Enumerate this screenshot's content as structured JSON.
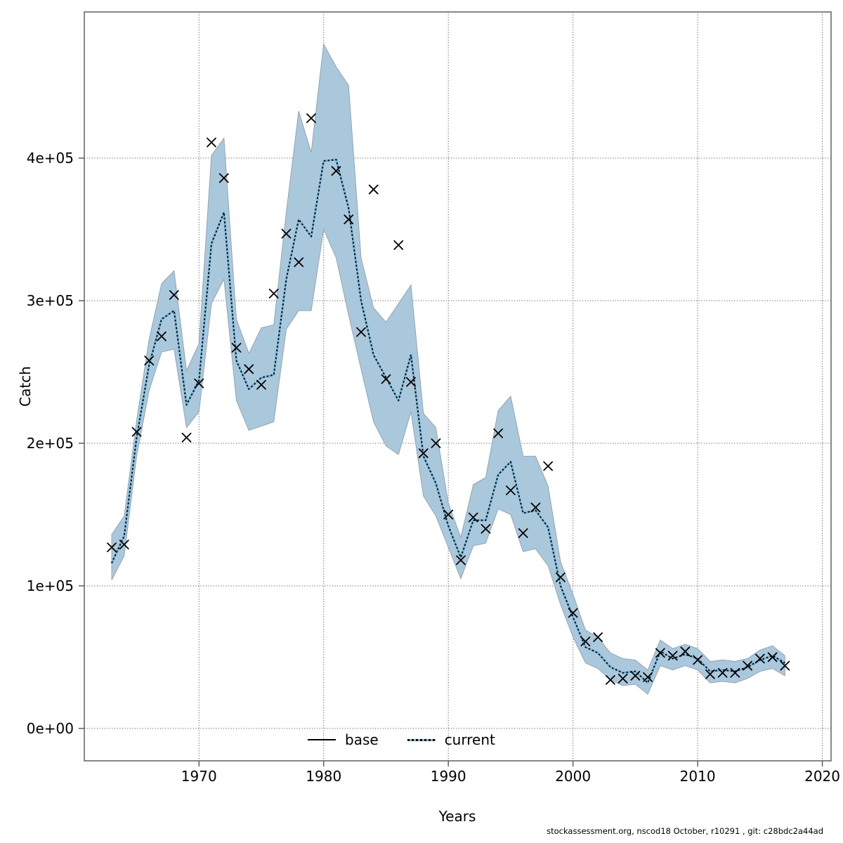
{
  "figure": {
    "xlabel": "Years",
    "ylabel": "Catch",
    "footer": "stockassessment.org, nscod18 October, r10291 , git: c28bdc2a44ad",
    "legend": [
      {
        "label": "base",
        "style": "solid-black-line"
      },
      {
        "label": "current",
        "style": "dotted-black-on-blue-line"
      }
    ]
  },
  "colors": {
    "background": "#ffffff",
    "band_fill": "#aac8db",
    "band_edge": "#8f9fae",
    "current_underline": "#6fb6dc",
    "line_black": "#000000",
    "grid": "#3c3c3c",
    "frame": "#555555",
    "text": "#000000"
  },
  "chart_data": {
    "type": "line",
    "title": "",
    "xlabel": "Years",
    "ylabel": "Catch",
    "xlim": [
      1960.8,
      2020.7
    ],
    "ylim": [
      -22700,
      502500
    ],
    "x_ticks": [
      1970,
      1980,
      1990,
      2000,
      2010,
      2020
    ],
    "y_ticks": [
      {
        "value": 0,
        "label": "0e+00"
      },
      {
        "value": 100000,
        "label": "1e+05"
      },
      {
        "value": 200000,
        "label": "2e+05"
      },
      {
        "value": 300000,
        "label": "3e+05"
      },
      {
        "value": 400000,
        "label": "4e+05"
      }
    ],
    "grid": "dotted",
    "legend_position": "bottom-center-inside",
    "years": [
      1963,
      1964,
      1965,
      1966,
      1967,
      1968,
      1969,
      1970,
      1971,
      1972,
      1973,
      1974,
      1975,
      1976,
      1977,
      1978,
      1979,
      1980,
      1981,
      1982,
      1983,
      1984,
      1985,
      1986,
      1987,
      1988,
      1989,
      1990,
      1991,
      1992,
      1993,
      1994,
      1995,
      1996,
      1997,
      1998,
      1999,
      2000,
      2001,
      2002,
      2003,
      2004,
      2005,
      2006,
      2007,
      2008,
      2009,
      2010,
      2011,
      2012,
      2013,
      2014,
      2015,
      2016,
      2017
    ],
    "series": [
      {
        "name": "base",
        "type": "line",
        "line_style": "solid",
        "color": "#000000",
        "values": [
          116000,
          135000,
          204000,
          255000,
          287000,
          293000,
          227000,
          244000,
          340000,
          362000,
          258000,
          238000,
          246000,
          248000,
          315000,
          357000,
          345000,
          398000,
          399000,
          365000,
          300000,
          262000,
          246000,
          230000,
          262000,
          191000,
          172000,
          142000,
          120000,
          146000,
          146000,
          178000,
          187000,
          151000,
          153000,
          141000,
          100000,
          78000,
          57000,
          53000,
          43000,
          39000,
          40000,
          32000,
          54000,
          49000,
          52000,
          49000,
          40000,
          41000,
          40000,
          43000,
          48000,
          51000,
          46000
        ]
      },
      {
        "name": "current",
        "type": "line",
        "line_style": "dotted",
        "color": "#000000",
        "underline_color": "#6fb6dc",
        "values": [
          116000,
          135000,
          204000,
          255000,
          287000,
          293000,
          227000,
          244000,
          340000,
          362000,
          258000,
          238000,
          246000,
          248000,
          315000,
          357000,
          345000,
          398000,
          399000,
          365000,
          300000,
          262000,
          246000,
          230000,
          262000,
          191000,
          172000,
          142000,
          120000,
          146000,
          146000,
          178000,
          187000,
          151000,
          153000,
          141000,
          100000,
          78000,
          57000,
          53000,
          43000,
          39000,
          40000,
          32000,
          54000,
          49000,
          52000,
          49000,
          40000,
          41000,
          40000,
          43000,
          48000,
          51000,
          46000
        ],
        "ci_lower": [
          104000,
          121000,
          191000,
          237000,
          264000,
          266000,
          211000,
          222000,
          298000,
          315000,
          230000,
          209000,
          212000,
          215000,
          280000,
          293000,
          293000,
          350000,
          330000,
          290000,
          252000,
          215000,
          198000,
          192000,
          222000,
          163000,
          149000,
          127000,
          105000,
          128000,
          130000,
          154000,
          150000,
          124000,
          126000,
          114000,
          87000,
          64000,
          46000,
          42000,
          34000,
          30000,
          31000,
          24000,
          44000,
          41000,
          44000,
          41000,
          32000,
          33000,
          32000,
          35000,
          40000,
          42000,
          37000
        ],
        "ci_upper": [
          136000,
          149000,
          216000,
          273000,
          312000,
          321000,
          251000,
          270000,
          402000,
          414000,
          287000,
          263000,
          281000,
          283000,
          362000,
          433000,
          404000,
          480000,
          464000,
          451000,
          330000,
          295000,
          285000,
          298000,
          311000,
          221000,
          211000,
          158000,
          134000,
          171000,
          176000,
          223000,
          233000,
          191000,
          191000,
          170000,
          117000,
          94000,
          69000,
          64000,
          53000,
          49000,
          48000,
          41000,
          62000,
          56000,
          59000,
          56000,
          47000,
          48000,
          47000,
          49000,
          55000,
          58000,
          51000
        ],
        "ci_fill": "#aac8db"
      },
      {
        "name": "observed-catch",
        "type": "scatter",
        "marker": "x",
        "color": "#000000",
        "values": [
          127000,
          129000,
          208000,
          258000,
          275000,
          304000,
          204000,
          242000,
          411000,
          386000,
          267000,
          252000,
          241000,
          305000,
          347000,
          327000,
          428000,
          null,
          391000,
          357000,
          278000,
          378000,
          245000,
          339000,
          243000,
          193000,
          200000,
          150000,
          118000,
          148000,
          140000,
          207000,
          167000,
          137000,
          155000,
          184000,
          106000,
          81000,
          61000,
          64000,
          34000,
          35000,
          37000,
          36000,
          53000,
          51000,
          54000,
          48000,
          38000,
          39000,
          39000,
          44000,
          49000,
          50000,
          44000
        ]
      }
    ]
  }
}
